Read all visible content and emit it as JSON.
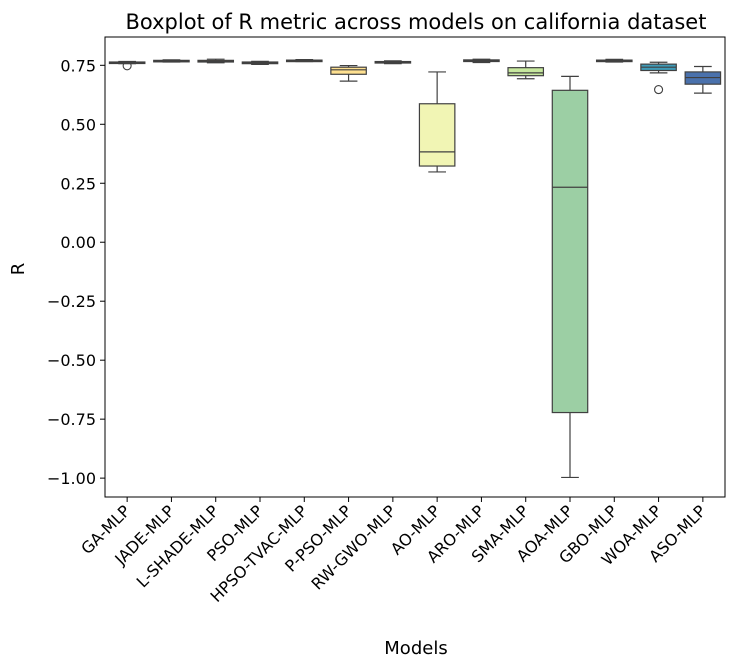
{
  "chart_data": {
    "type": "boxplot",
    "title": "Boxplot of R metric across models on california dataset",
    "xlabel": "Models",
    "ylabel": "R",
    "ylim": [
      -1.08,
      0.87
    ],
    "yticks": [
      0.75,
      0.5,
      0.25,
      0.0,
      -0.25,
      -0.5,
      -0.75,
      -1.0
    ],
    "ytick_labels": [
      "0.75",
      "0.50",
      "0.25",
      "0.00",
      "−0.25",
      "−0.50",
      "−0.75",
      "−1.00"
    ],
    "grid": false,
    "legend": "none",
    "categories": [
      "GA-MLP",
      "JADE-MLP",
      "L-SHADE-MLP",
      "PSO-MLP",
      "HPSO-TVAC-MLP",
      "P-PSO-MLP",
      "RW-GWO-MLP",
      "AO-MLP",
      "ARO-MLP",
      "SMA-MLP",
      "AOA-MLP",
      "GBO-MLP",
      "WOA-MLP",
      "ASO-MLP"
    ],
    "boxes": [
      {
        "category": "GA-MLP",
        "whisker_low": 0.757,
        "q1": 0.759,
        "median": 0.761,
        "q3": 0.764,
        "whisker_high": 0.766,
        "outliers": [
          0.748
        ],
        "color": "#d53e4f"
      },
      {
        "category": "JADE-MLP",
        "whisker_low": 0.764,
        "q1": 0.766,
        "median": 0.768,
        "q3": 0.771,
        "whisker_high": 0.773,
        "outliers": [],
        "color": "#f46d43"
      },
      {
        "category": "L-SHADE-MLP",
        "whisker_low": 0.761,
        "q1": 0.764,
        "median": 0.767,
        "q3": 0.771,
        "whisker_high": 0.776,
        "outliers": [],
        "color": "#fb9a59"
      },
      {
        "category": "PSO-MLP",
        "whisker_low": 0.754,
        "q1": 0.757,
        "median": 0.76,
        "q3": 0.764,
        "whisker_high": 0.767,
        "outliers": [],
        "color": "#fdbf6f"
      },
      {
        "category": "HPSO-TVAC-MLP",
        "whisker_low": 0.766,
        "q1": 0.768,
        "median": 0.77,
        "q3": 0.772,
        "whisker_high": 0.774,
        "outliers": [],
        "color": "#fee08b"
      },
      {
        "category": "P-PSO-MLP",
        "whisker_low": 0.683,
        "q1": 0.712,
        "median": 0.731,
        "q3": 0.742,
        "whisker_high": 0.749,
        "outliers": [],
        "color": "#fee090"
      },
      {
        "category": "RW-GWO-MLP",
        "whisker_low": 0.757,
        "q1": 0.76,
        "median": 0.763,
        "q3": 0.766,
        "whisker_high": 0.769,
        "outliers": [],
        "color": "#f7f1a6"
      },
      {
        "category": "AO-MLP",
        "whisker_low": 0.298,
        "q1": 0.323,
        "median": 0.383,
        "q3": 0.587,
        "whisker_high": 0.722,
        "outliers": [],
        "color": "#f1f5b4"
      },
      {
        "category": "ARO-MLP",
        "whisker_low": 0.762,
        "q1": 0.766,
        "median": 0.77,
        "q3": 0.773,
        "whisker_high": 0.776,
        "outliers": [],
        "color": "#e6f598"
      },
      {
        "category": "SMA-MLP",
        "whisker_low": 0.693,
        "q1": 0.706,
        "median": 0.718,
        "q3": 0.74,
        "whisker_high": 0.768,
        "outliers": [],
        "color": "#c7e89e"
      },
      {
        "category": "AOA-MLP",
        "whisker_low": -0.997,
        "q1": -0.722,
        "median": 0.233,
        "q3": 0.644,
        "whisker_high": 0.703,
        "outliers": [],
        "color": "#9ccfa4"
      },
      {
        "category": "GBO-MLP",
        "whisker_low": 0.764,
        "q1": 0.767,
        "median": 0.769,
        "q3": 0.772,
        "whisker_high": 0.775,
        "outliers": [],
        "color": "#66c2a5"
      },
      {
        "category": "WOA-MLP",
        "whisker_low": 0.718,
        "q1": 0.728,
        "median": 0.742,
        "q3": 0.755,
        "whisker_high": 0.763,
        "outliers": [
          0.647
        ],
        "color": "#3f9bb8"
      },
      {
        "category": "ASO-MLP",
        "whisker_low": 0.632,
        "q1": 0.67,
        "median": 0.698,
        "q3": 0.722,
        "whisker_high": 0.745,
        "outliers": [],
        "color": "#4a71ac"
      }
    ]
  }
}
